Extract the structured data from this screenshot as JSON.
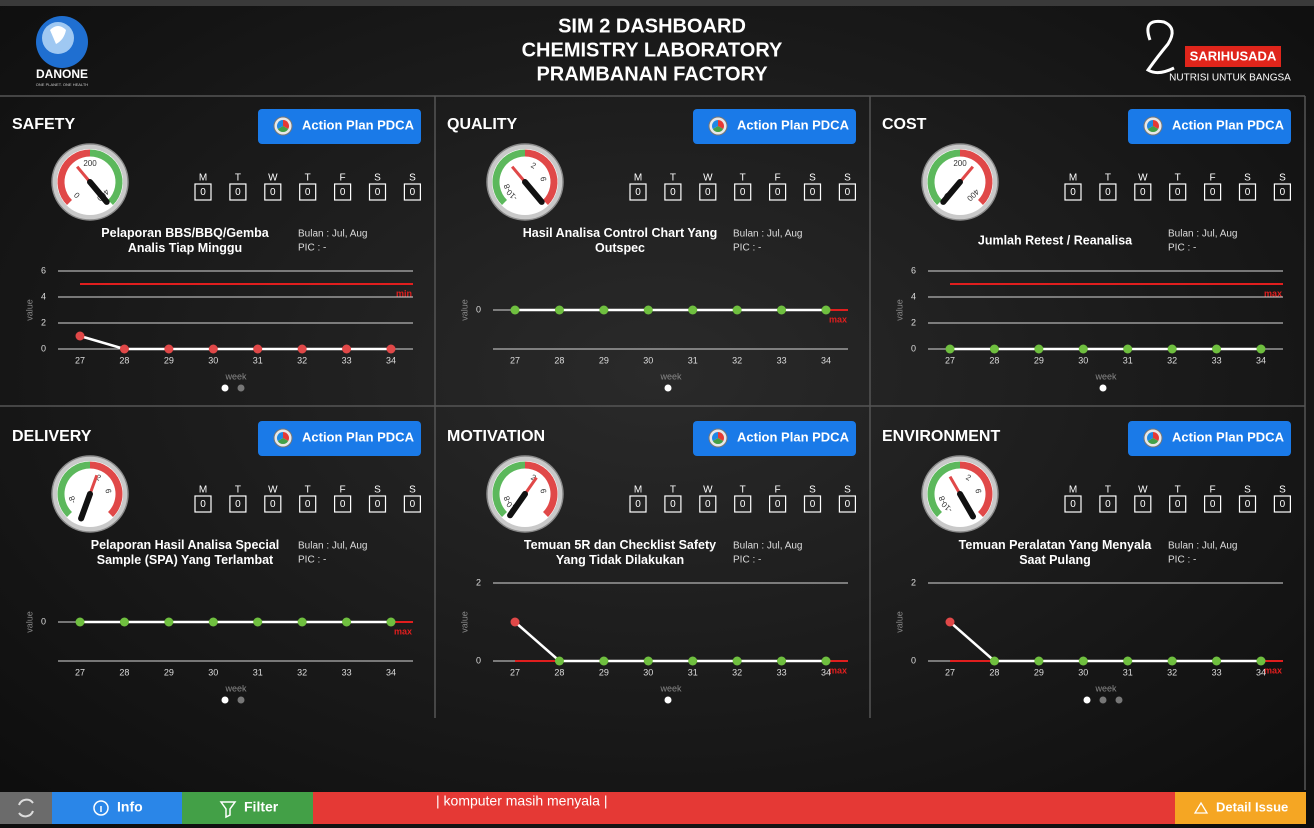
{
  "header": {
    "title_lines": [
      "SIM 2 DASHBOARD",
      "CHEMISTRY LABORATORY",
      "PRAMBANAN FACTORY"
    ],
    "left_logo": {
      "name": "DANONE",
      "tagline": "ONE PLANET. ONE HEALTH"
    },
    "right_logo": {
      "name": "SARIHUSADA",
      "tagline": "NUTRISI UNTUK BANGSA"
    }
  },
  "days": [
    "M",
    "T",
    "W",
    "T",
    "F",
    "S",
    "S"
  ],
  "button_label": "Action Plan PDCA",
  "period": "Bulan : Jul, Aug",
  "pic": "PIC : -",
  "y_label": "value",
  "x_label": "week",
  "weeks": [
    27,
    28,
    29,
    30,
    31,
    32,
    33,
    34
  ],
  "line_color": "#ffffff",
  "ref_color": "#e01e1e",
  "panels": [
    {
      "title": "SAFETY",
      "metric": [
        "Pelaporan BBS/BBQ/Gemba",
        "Analis Tiap Minggu"
      ],
      "daily": [
        0,
        0,
        0,
        0,
        0,
        0,
        0
      ],
      "gauge": {
        "lim": [
          0,
          400
        ],
        "ticks": [
          0,
          200,
          400
        ],
        "colors": [
          "#e04848",
          "#5cb85c"
        ]
      },
      "chart": {
        "ylim": [
          0,
          6
        ],
        "yticks": [
          0,
          2,
          4,
          6
        ],
        "values": [
          1,
          0,
          0,
          0,
          0,
          0,
          0,
          0
        ],
        "point_colors": [
          "#e04848",
          "#e04848",
          "#e04848",
          "#e04848",
          "#e04848",
          "#e04848",
          "#e04848",
          "#e04848"
        ],
        "ref": {
          "value": 5,
          "label": "min"
        }
      }
    },
    {
      "title": "QUALITY",
      "metric": [
        "Hasil Analisa Control Chart Yang",
        "Outspec"
      ],
      "daily": [
        0,
        0,
        0,
        0,
        0,
        0,
        0
      ],
      "gauge": {
        "lim": [
          -10,
          10
        ],
        "ticks": [
          -10,
          -8,
          2,
          6
        ],
        "colors": [
          "#5cb85c",
          "#e04848"
        ]
      },
      "chart": {
        "ylim": [
          -1.5,
          1.5
        ],
        "yticks": [
          0
        ],
        "values": [
          0,
          0,
          0,
          0,
          0,
          0,
          0,
          0
        ],
        "point_colors": [
          "#6fbf3f",
          "#6fbf3f",
          "#6fbf3f",
          "#6fbf3f",
          "#6fbf3f",
          "#6fbf3f",
          "#6fbf3f",
          "#6fbf3f"
        ],
        "ref": {
          "value": 0,
          "label": "max"
        }
      }
    },
    {
      "title": "COST",
      "metric": [
        "Jumlah Retest / Reanalisa"
      ],
      "daily": [
        0,
        0,
        0,
        0,
        0,
        0,
        0
      ],
      "gauge": {
        "lim": [
          0,
          400
        ],
        "ticks": [
          0,
          200,
          400
        ],
        "colors": [
          "#5cb85c",
          "#e04848"
        ]
      },
      "chart": {
        "ylim": [
          0,
          6
        ],
        "yticks": [
          0,
          2,
          4,
          6
        ],
        "values": [
          0,
          0,
          0,
          0,
          0,
          0,
          0,
          0
        ],
        "point_colors": [
          "#6fbf3f",
          "#6fbf3f",
          "#6fbf3f",
          "#6fbf3f",
          "#6fbf3f",
          "#6fbf3f",
          "#6fbf3f",
          "#6fbf3f"
        ],
        "ref": {
          "value": 5,
          "label": "max"
        }
      }
    },
    {
      "title": "DELIVERY",
      "metric": [
        "Pelaporan Hasil Analisa Special",
        "Sample (SPA) Yang Terlambat"
      ],
      "daily": [
        0,
        0,
        0,
        0,
        0,
        0,
        0
      ],
      "gauge": {
        "lim": [
          -10,
          10
        ],
        "ticks": [
          -8,
          2,
          6
        ],
        "colors": [
          "#5cb85c",
          "#e04848"
        ]
      },
      "chart": {
        "ylim": [
          -1.5,
          1.5
        ],
        "yticks": [
          0
        ],
        "values": [
          0,
          0,
          0,
          0,
          0,
          0,
          0,
          0
        ],
        "point_colors": [
          "#6fbf3f",
          "#6fbf3f",
          "#6fbf3f",
          "#6fbf3f",
          "#6fbf3f",
          "#6fbf3f",
          "#6fbf3f",
          "#6fbf3f"
        ],
        "ref": {
          "value": 0,
          "label": "max"
        }
      }
    },
    {
      "title": "MOTIVATION",
      "metric": [
        "Temuan 5R dan Checklist Safety",
        "Yang Tidak Dilakukan"
      ],
      "daily": [
        0,
        0,
        0,
        0,
        0,
        0,
        0
      ],
      "gauge": {
        "lim": [
          -10,
          10
        ],
        "ticks": [
          -10,
          -8,
          2,
          6
        ],
        "colors": [
          "#5cb85c",
          "#e04848"
        ]
      },
      "chart": {
        "ylim": [
          0,
          2
        ],
        "yticks": [
          0,
          2
        ],
        "values": [
          1,
          0,
          0,
          0,
          0,
          0,
          0,
          0
        ],
        "point_colors": [
          "#e04848",
          "#6fbf3f",
          "#6fbf3f",
          "#6fbf3f",
          "#6fbf3f",
          "#6fbf3f",
          "#6fbf3f",
          "#6fbf3f"
        ],
        "ref": {
          "value": 0,
          "label": "max"
        }
      }
    },
    {
      "title": "ENVIRONMENT",
      "metric": [
        "Temuan Peralatan Yang Menyala",
        "Saat Pulang"
      ],
      "daily": [
        0,
        0,
        0,
        0,
        0,
        0,
        0
      ],
      "gauge": {
        "lim": [
          -10,
          10
        ],
        "ticks": [
          -10,
          -8,
          2,
          6
        ],
        "colors": [
          "#5cb85c",
          "#e04848"
        ]
      },
      "chart": {
        "ylim": [
          0,
          2
        ],
        "yticks": [
          0,
          2
        ],
        "values": [
          1,
          0,
          0,
          0,
          0,
          0,
          0,
          0
        ],
        "point_colors": [
          "#e04848",
          "#6fbf3f",
          "#6fbf3f",
          "#6fbf3f",
          "#6fbf3f",
          "#6fbf3f",
          "#6fbf3f",
          "#6fbf3f"
        ],
        "ref": {
          "value": 0,
          "label": "max"
        }
      }
    }
  ],
  "footer": {
    "info": "Info",
    "filter": "Filter",
    "ticker": "| komputer masih menyala |",
    "detail": "Detail Issue"
  }
}
